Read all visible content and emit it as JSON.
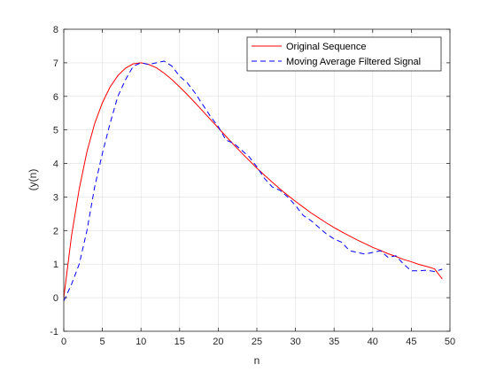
{
  "chart_data": {
    "type": "line",
    "xlabel": "n",
    "ylabel": "(y(n)",
    "xlim": [
      0,
      50
    ],
    "ylim": [
      -1,
      8
    ],
    "xticks": [
      0,
      5,
      10,
      15,
      20,
      25,
      30,
      35,
      40,
      45,
      50
    ],
    "yticks": [
      -1,
      0,
      1,
      2,
      3,
      4,
      5,
      6,
      7,
      8
    ],
    "grid": true,
    "legend_position": "top-right",
    "series": [
      {
        "name": "Original Sequence",
        "color": "#ff0000",
        "style": "solid",
        "x": [
          0,
          1,
          2,
          3,
          4,
          5,
          6,
          7,
          8,
          9,
          10,
          11,
          12,
          13,
          14,
          15,
          16,
          17,
          18,
          19,
          20,
          21,
          22,
          23,
          24,
          25,
          26,
          27,
          28,
          29,
          30,
          31,
          32,
          33,
          34,
          35,
          36,
          37,
          38,
          39,
          40,
          41,
          42,
          43,
          44,
          45,
          46,
          47,
          48,
          49
        ],
        "values": [
          0,
          1.84,
          3.24,
          4.35,
          5.19,
          5.81,
          6.28,
          6.62,
          6.84,
          6.97,
          7.0,
          6.95,
          6.85,
          6.69,
          6.5,
          6.28,
          6.05,
          5.81,
          5.56,
          5.31,
          5.06,
          4.81,
          4.56,
          4.32,
          4.09,
          3.86,
          3.65,
          3.44,
          3.24,
          3.05,
          2.87,
          2.7,
          2.53,
          2.38,
          2.23,
          2.09,
          1.96,
          1.84,
          1.72,
          1.61,
          1.5,
          1.41,
          1.31,
          1.23,
          1.14,
          1.07,
          0.99,
          0.93,
          0.86,
          0.56
        ]
      },
      {
        "name": "Moving Average Filtered Signal",
        "color": "#0000ff",
        "style": "dashed",
        "x": [
          0,
          1,
          2,
          3,
          4,
          5,
          6,
          7,
          8,
          9,
          10,
          11,
          12,
          13,
          14,
          15,
          16,
          17,
          18,
          19,
          20,
          21,
          22,
          23,
          24,
          25,
          26,
          27,
          28,
          29,
          30,
          31,
          32,
          33,
          34,
          35,
          36,
          37,
          38,
          39,
          40,
          41,
          42,
          43,
          44,
          45,
          46,
          47,
          48,
          49
        ],
        "values": [
          -0.1,
          0.4,
          1.0,
          2.0,
          3.3,
          4.3,
          5.2,
          6.0,
          6.5,
          6.9,
          7.0,
          6.95,
          7.0,
          7.05,
          6.9,
          6.6,
          6.4,
          6.1,
          5.75,
          5.4,
          5.1,
          4.7,
          4.6,
          4.4,
          4.2,
          3.9,
          3.55,
          3.3,
          3.2,
          3.0,
          2.75,
          2.45,
          2.3,
          2.1,
          1.9,
          1.75,
          1.65,
          1.4,
          1.35,
          1.3,
          1.35,
          1.4,
          1.2,
          1.25,
          1.0,
          0.8,
          0.8,
          0.82,
          0.78,
          0.85
        ]
      }
    ]
  }
}
